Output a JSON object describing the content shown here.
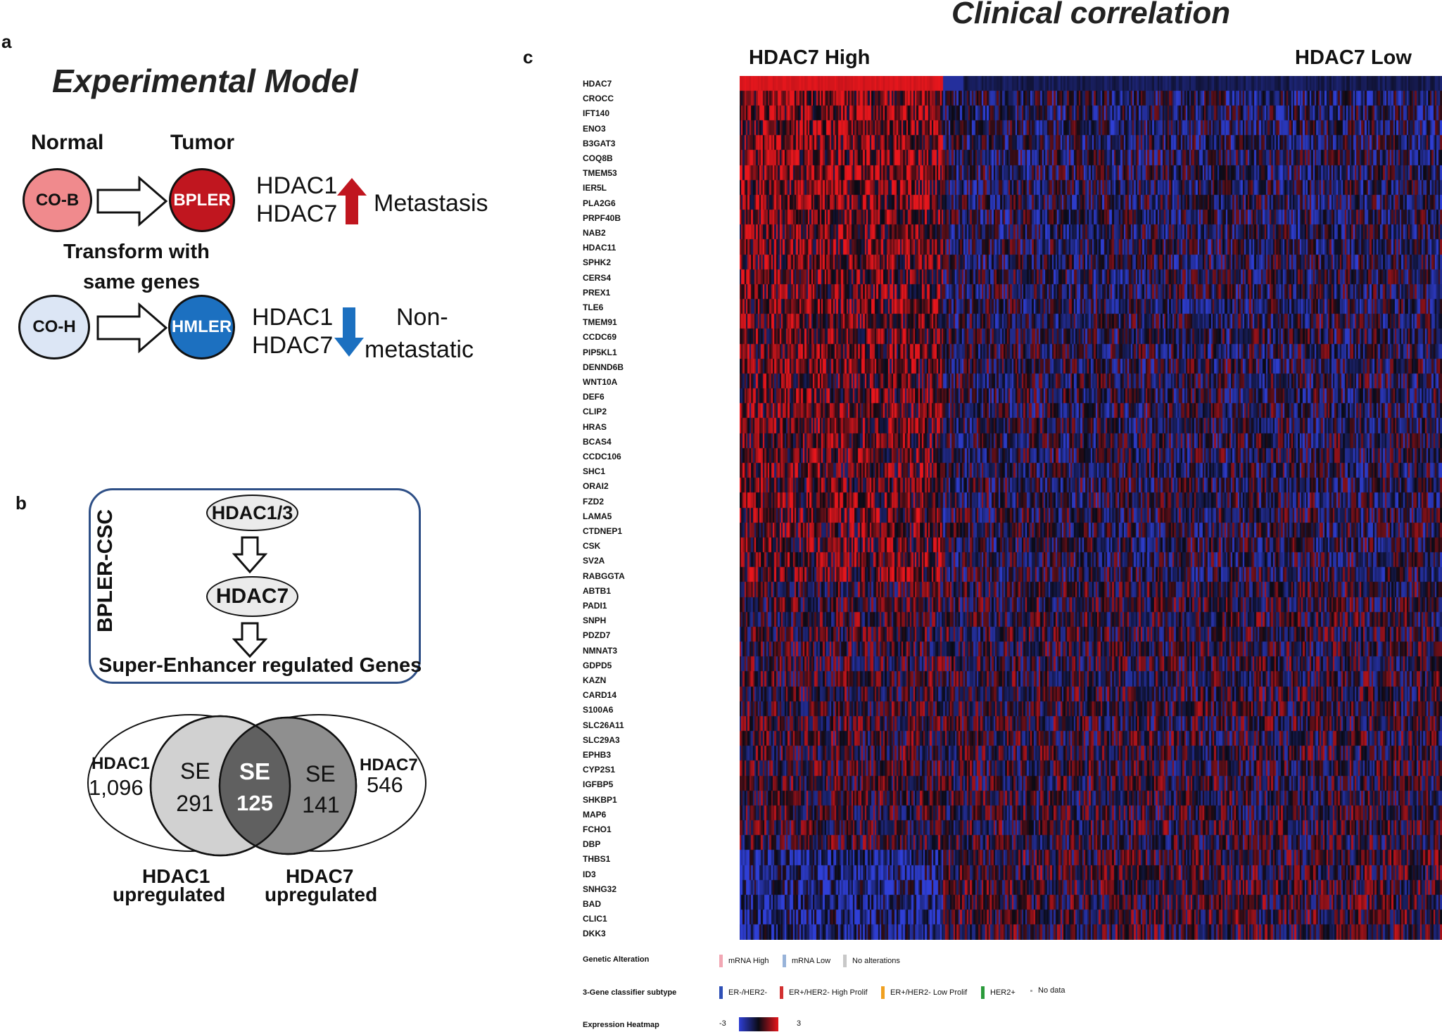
{
  "panel_a": {
    "letter": "a",
    "title": "Experimental Model",
    "normal_label": "Normal",
    "tumor_label": "Tumor",
    "row1": {
      "source": "CO-B",
      "target": "BPLER",
      "genes": [
        "HDAC1",
        "HDAC7"
      ],
      "direction": "up",
      "outcome": "Metastasis"
    },
    "transform_label": [
      "Transform with",
      "same genes"
    ],
    "row2": {
      "source": "CO-H",
      "target": "HMLER",
      "genes": [
        "HDAC1",
        "HDAC7"
      ],
      "direction": "down",
      "outcome": [
        "Non-",
        "metastatic"
      ]
    },
    "colors": {
      "co_b": "#f08a8d",
      "bpler": "#c0161f",
      "co_h": "#dce6f5",
      "hmler": "#1c70c0",
      "up_arrow": "#c0161f",
      "down_arrow": "#1c70c0"
    }
  },
  "panel_b": {
    "letter": "b",
    "box_side_label": "BPLER-CSC",
    "flow": [
      "HDAC1/3",
      "HDAC7",
      "Super-Enhancer regulated Genes"
    ],
    "venn": {
      "left_outer_label": "HDAC1",
      "left_outer_value": "1,096",
      "left_se_label": "SE",
      "left_se_value": "291",
      "center_se_label": "SE",
      "center_se_value": "125",
      "right_se_label": "SE",
      "right_se_value": "141",
      "right_outer_label": "HDAC7",
      "right_outer_value": "546",
      "caption_left": [
        "HDAC1",
        "upregulated"
      ],
      "caption_right": [
        "HDAC7",
        "upregulated"
      ]
    }
  },
  "panel_c": {
    "letter": "c",
    "title": "Clinical correlation",
    "left_header": "HDAC7 High",
    "right_header": "HDAC7 Low",
    "genes": [
      "HDAC7",
      "CROCC",
      "IFT140",
      "ENO3",
      "B3GAT3",
      "COQ8B",
      "TMEM53",
      "IER5L",
      "PLA2G6",
      "PRPF40B",
      "NAB2",
      "HDAC11",
      "SPHK2",
      "CERS4",
      "PREX1",
      "TLE6",
      "TMEM91",
      "CCDC69",
      "PIP5KL1",
      "DENND6B",
      "WNT10A",
      "DEF6",
      "CLIP2",
      "HRAS",
      "BCAS4",
      "CCDC106",
      "SHC1",
      "ORAI2",
      "FZD2",
      "LAMA5",
      "CTDNEP1",
      "CSK",
      "SV2A",
      "RABGGTA",
      "ABTB1",
      "PADI1",
      "SNPH",
      "PDZD7",
      "NMNAT3",
      "GDPD5",
      "KAZN",
      "CARD14",
      "S100A6",
      "SLC26A11",
      "SLC29A3",
      "EPHB3",
      "CYP2S1",
      "IGFBP5",
      "SHKBP1",
      "MAP6",
      "FCHO1",
      "DBP",
      "THBS1",
      "ID3",
      "SNHG32",
      "BAD",
      "CLIC1",
      "DKK3"
    ],
    "heatmap_colors": {
      "low": "#2f3fd6",
      "mid": "#0a0a14",
      "high": "#e8161c"
    },
    "legend": {
      "genetic_alteration": {
        "label": "Genetic Alteration",
        "items": [
          {
            "name": "mRNA High",
            "color": "#f2a7b4"
          },
          {
            "name": "mRNA Low",
            "color": "#98b3d9"
          },
          {
            "name": "No alterations",
            "color": "#c8c8c8"
          }
        ]
      },
      "classifier": {
        "label": "3-Gene classifier subtype",
        "items": [
          {
            "name": "ER-/HER2-",
            "color": "#2e4fb6"
          },
          {
            "name": "ER+/HER2- High Prolif",
            "color": "#d23030"
          },
          {
            "name": "ER+/HER2- Low Prolif",
            "color": "#f0a020"
          },
          {
            "name": "HER2+",
            "color": "#2a9a3a"
          },
          {
            "name": "No data",
            "color": "#dddddd"
          }
        ]
      },
      "expression": {
        "label": "Expression Heatmap",
        "min": "-3",
        "max": "3"
      }
    }
  }
}
